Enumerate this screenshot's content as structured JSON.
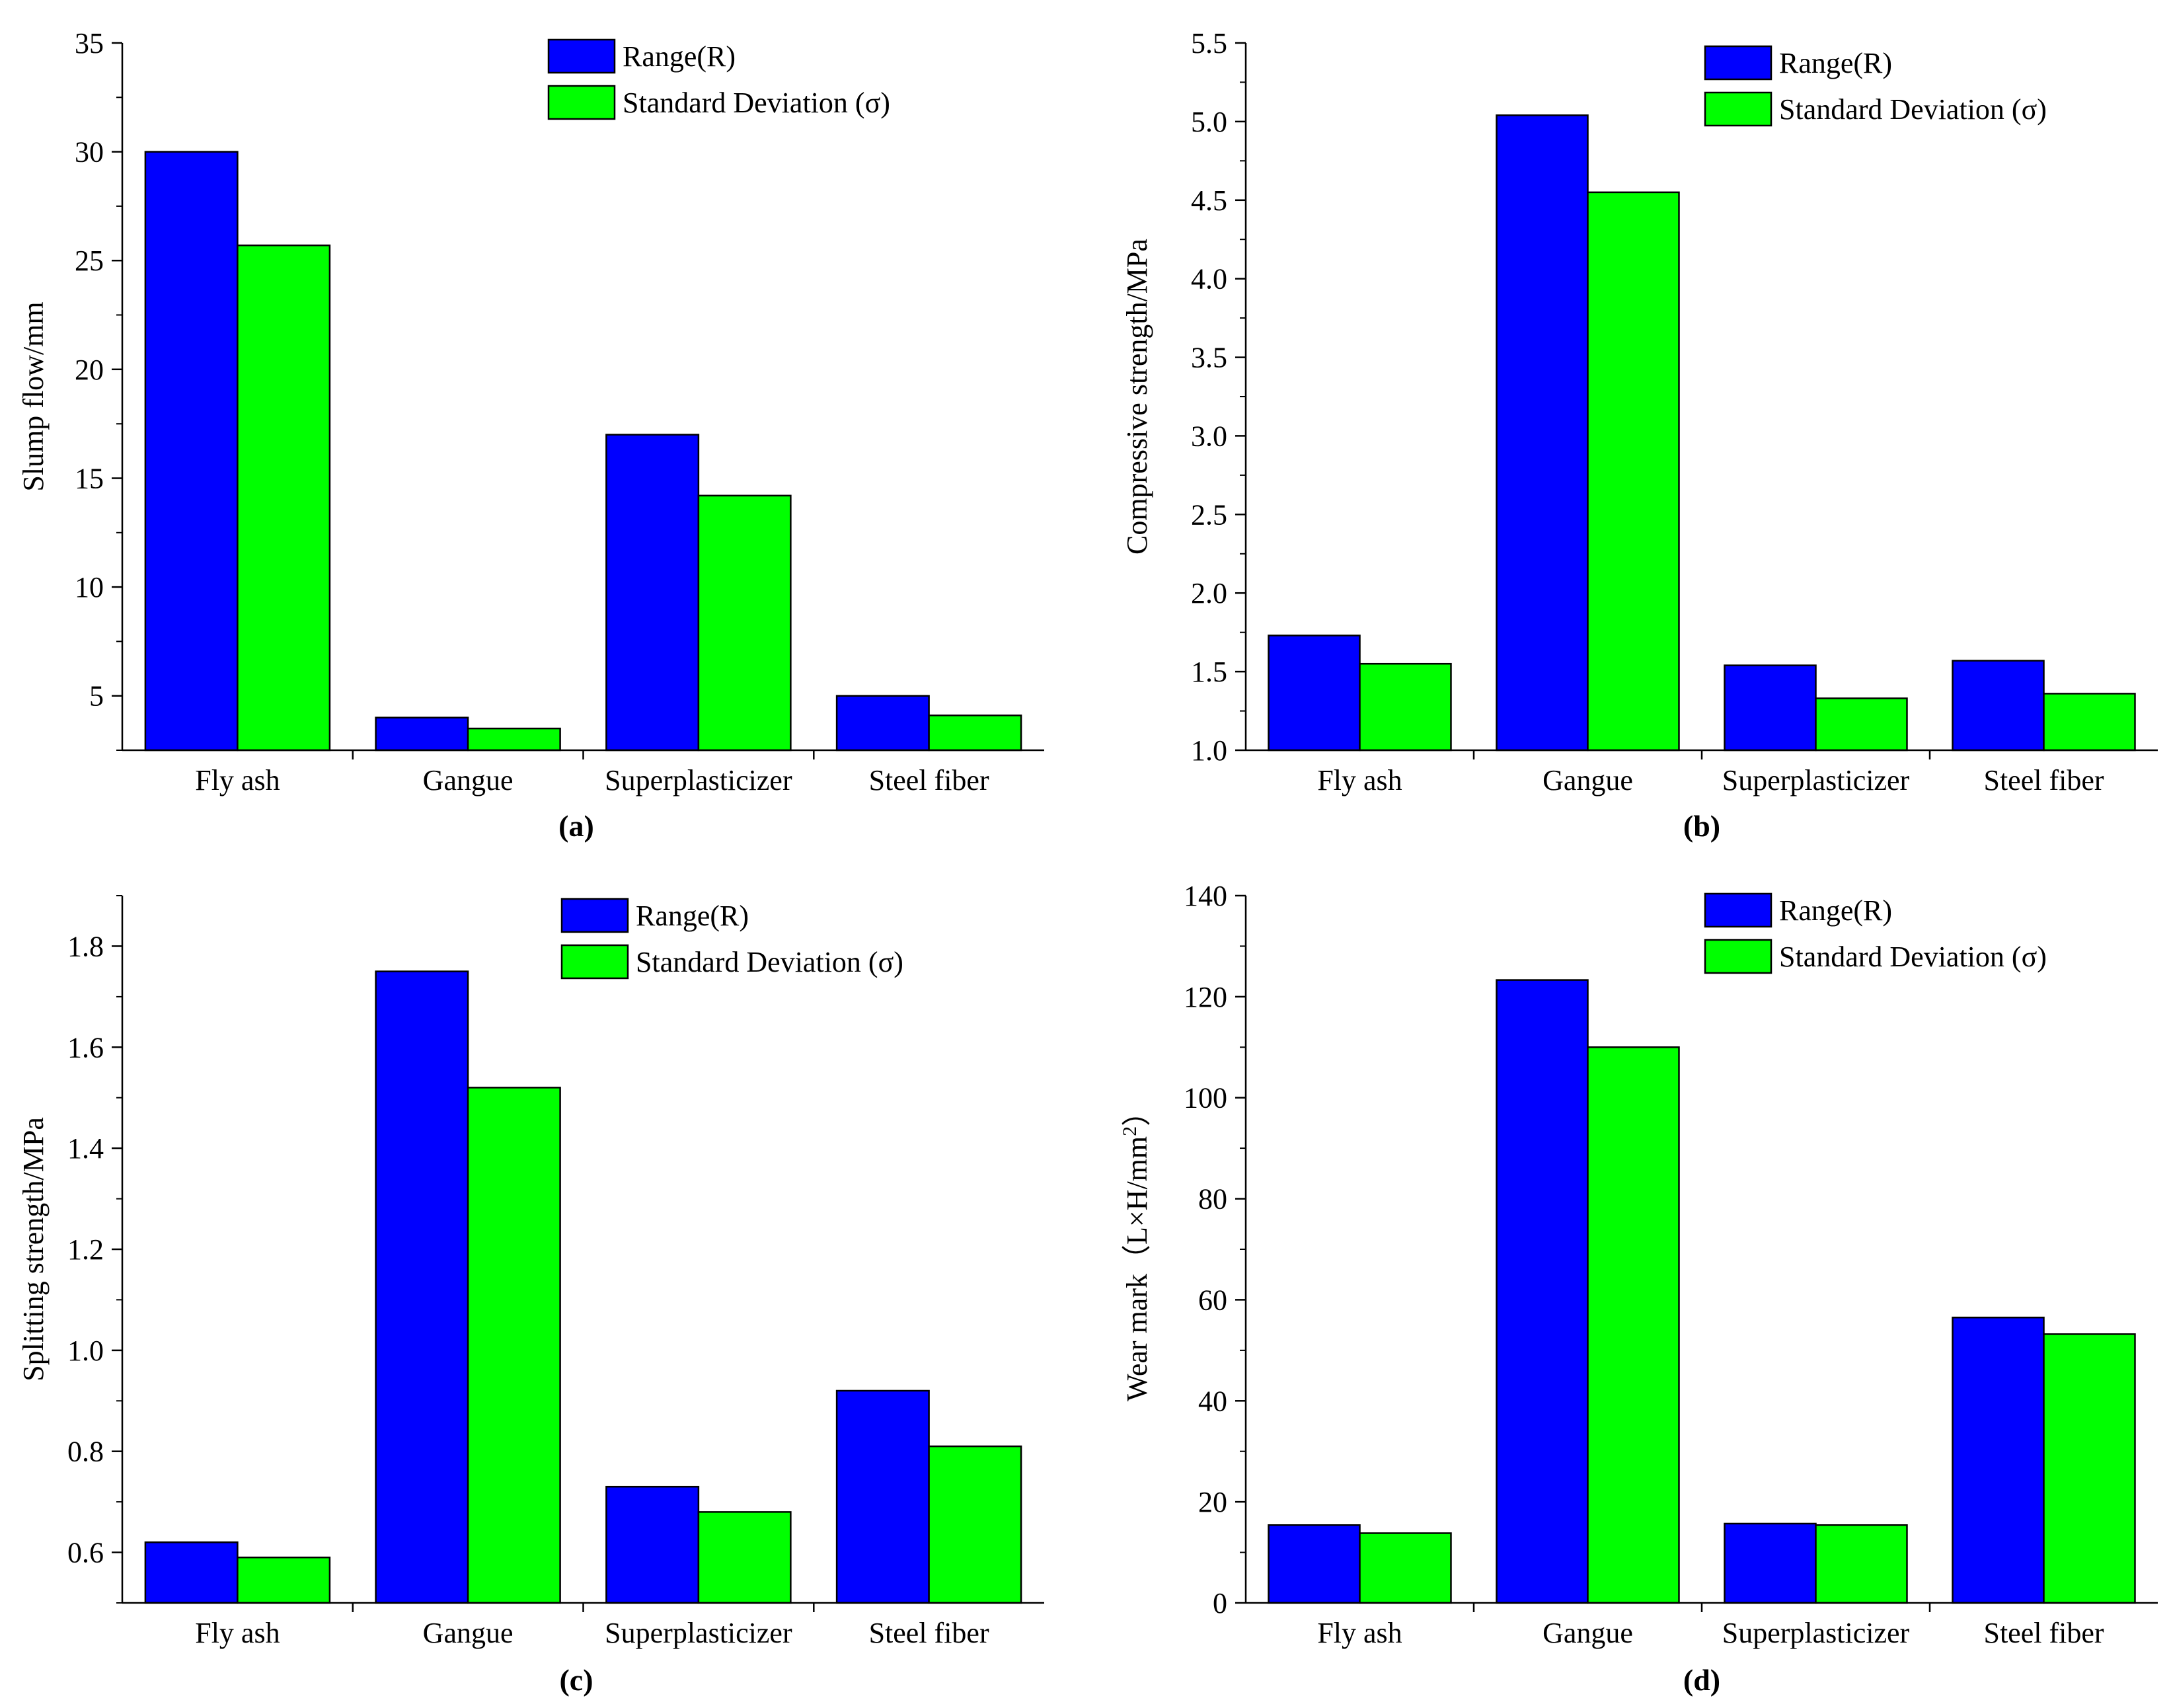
{
  "colors": {
    "range": "#0000ff",
    "std": "#00ff00",
    "axis": "#000000"
  },
  "legend": {
    "range_label": "Range(R)",
    "std_label": "Standard Deviation (σ)"
  },
  "chart_data": [
    {
      "panel": "(a)",
      "type": "bar",
      "categories": [
        "Fly ash",
        "Gangue",
        "Superplasticizer",
        "Steel fiber"
      ],
      "series": [
        {
          "name": "Range(R)",
          "values": [
            30,
            4,
            17,
            5
          ]
        },
        {
          "name": "Standard Deviation (σ)",
          "values": [
            25.7,
            3.5,
            14.2,
            4.1
          ]
        }
      ],
      "ylabel": "Slump flow/mm",
      "ylim": [
        2.5,
        35
      ],
      "yticks": [
        5,
        10,
        15,
        20,
        25,
        30,
        35
      ],
      "ytick_labels": [
        "5",
        "10",
        "15",
        "20",
        "25",
        "30",
        "35"
      ],
      "legend_position": "top-center"
    },
    {
      "panel": "(b)",
      "type": "bar",
      "categories": [
        "Fly ash",
        "Gangue",
        "Superplasticizer",
        "Steel fiber"
      ],
      "series": [
        {
          "name": "Range(R)",
          "values": [
            1.73,
            5.04,
            1.54,
            1.57
          ]
        },
        {
          "name": "Standard Deviation (σ)",
          "values": [
            1.55,
            4.55,
            1.33,
            1.36
          ]
        }
      ],
      "ylabel": "Compressive strength/MPa",
      "ylim": [
        1.0,
        5.5
      ],
      "yticks": [
        1.0,
        1.5,
        2.0,
        2.5,
        3.0,
        3.5,
        4.0,
        4.5,
        5.0,
        5.5
      ],
      "ytick_labels": [
        "1.0",
        "1.5",
        "2.0",
        "2.5",
        "3.0",
        "3.5",
        "4.0",
        "4.5",
        "5.0",
        "5.5"
      ],
      "legend_position": "top-center"
    },
    {
      "panel": "(c)",
      "type": "bar",
      "categories": [
        "Fly ash",
        "Gangue",
        "Superplasticizer",
        "Steel fiber"
      ],
      "series": [
        {
          "name": "Range(R)",
          "values": [
            0.62,
            1.75,
            0.73,
            0.92
          ]
        },
        {
          "name": "Standard Deviation (σ)",
          "values": [
            0.59,
            1.52,
            0.68,
            0.81
          ]
        }
      ],
      "ylabel": "Splitting strength/MPa",
      "ylim": [
        0.5,
        1.9
      ],
      "yticks": [
        0.6,
        0.8,
        1.0,
        1.2,
        1.4,
        1.6,
        1.8
      ],
      "ytick_labels": [
        "0.6",
        "0.8",
        "1.0",
        "1.2",
        "1.4",
        "1.6",
        "1.8"
      ],
      "legend_position": "top-center"
    },
    {
      "panel": "(d)",
      "type": "bar",
      "categories": [
        "Fly ash",
        "Gangue",
        "Superplasticizer",
        "Steel fiber"
      ],
      "series": [
        {
          "name": "Range(R)",
          "values": [
            15.4,
            123.3,
            15.7,
            56.5
          ]
        },
        {
          "name": "Standard Deviation (σ)",
          "values": [
            13.8,
            110.0,
            15.4,
            53.2
          ]
        }
      ],
      "ylabel": "Wear mark（L×H/mm²）",
      "ylabel_base": "Wear mark（L×H/mm",
      "ylabel_sup": "2",
      "ylabel_end": "）",
      "ylim": [
        0,
        140
      ],
      "yticks": [
        0,
        20,
        40,
        60,
        80,
        100,
        120,
        140
      ],
      "ytick_labels": [
        "0",
        "20",
        "40",
        "60",
        "80",
        "100",
        "120",
        "140"
      ],
      "legend_position": "top-center"
    }
  ]
}
